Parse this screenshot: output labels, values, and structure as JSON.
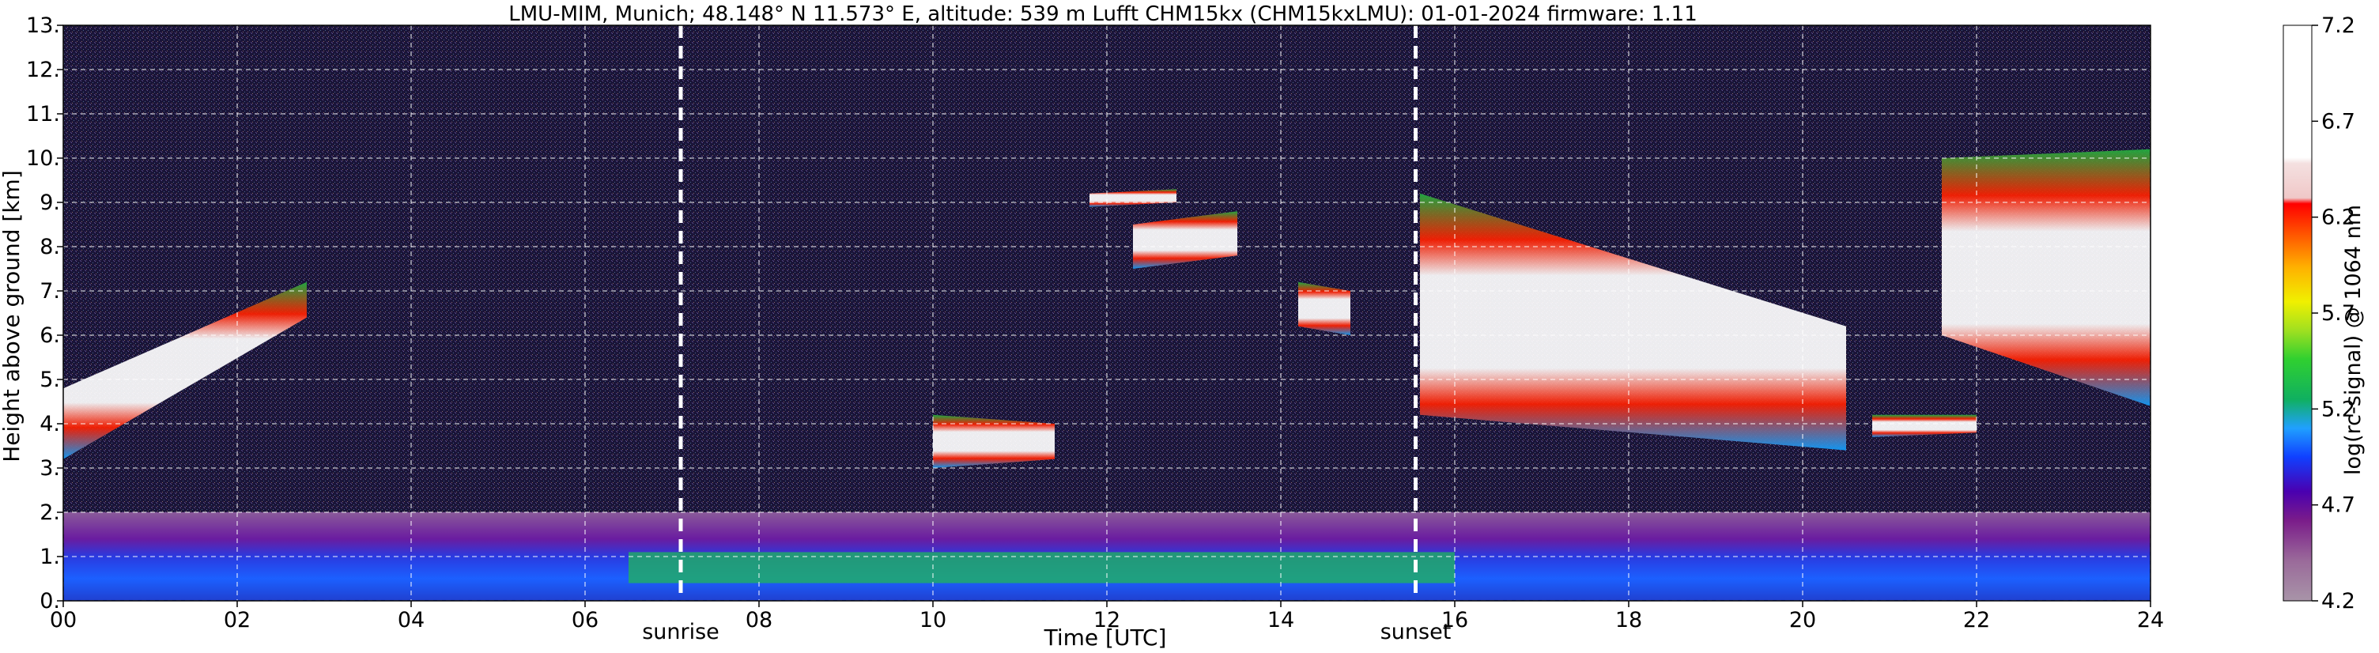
{
  "title": "LMU-MIM, Munich; 48.148° N 11.573° E, altitude: 539 m    Lufft CHM15kx (CHM15kxLMU): 01-01-2024    firmware: 1.11",
  "chart_data": {
    "type": "heatmap",
    "xlabel": "Time [UTC]",
    "ylabel": "Height above ground [km]",
    "xlim": [
      0,
      24
    ],
    "ylim": [
      0,
      13
    ],
    "x_ticks": [
      "00",
      "02",
      "04",
      "06",
      "08",
      "10",
      "12",
      "14",
      "16",
      "18",
      "20",
      "22",
      "24"
    ],
    "y_ticks": [
      "0.",
      "1.",
      "2.",
      "3.",
      "4.",
      "5.",
      "6.",
      "7.",
      "8.",
      "9.",
      "10.",
      "11.",
      "12.",
      "13."
    ],
    "grid": true,
    "colorbar": {
      "label": "log(rc-signal) @ 1064 nm",
      "range": [
        4.2,
        7.2
      ],
      "ticks": [
        "4.2",
        "4.7",
        "5.2",
        "5.7",
        "6.2",
        "6.7",
        "7.2"
      ]
    },
    "annotations": [
      {
        "label": "sunrise",
        "x": 7.1
      },
      {
        "label": "sunset",
        "x": 15.55
      }
    ],
    "cloud_layers": [
      {
        "name": "",
        "start": 0.0,
        "end": 2.8,
        "base_start": 3.2,
        "base_end": 6.4,
        "top_start": 4.8,
        "top_end": 7.2
      },
      {
        "name": "",
        "start": 10.0,
        "end": 11.4,
        "base_start": 3.0,
        "base_end": 3.2,
        "top_start": 4.2,
        "top_end": 4.0
      },
      {
        "name": "",
        "start": 11.8,
        "end": 12.8,
        "base_start": 8.9,
        "base_end": 9.0,
        "top_start": 9.2,
        "top_end": 9.3
      },
      {
        "name": "",
        "start": 12.3,
        "end": 13.5,
        "base_start": 7.5,
        "base_end": 7.8,
        "top_start": 8.5,
        "top_end": 8.8
      },
      {
        "name": "",
        "start": 14.2,
        "end": 14.8,
        "base_start": 6.2,
        "base_end": 6.0,
        "top_start": 7.2,
        "top_end": 7.0
      },
      {
        "name": "",
        "start": 15.6,
        "end": 20.5,
        "base_start": 4.2,
        "base_end": 3.4,
        "top_start": 9.2,
        "top_end": 6.2
      },
      {
        "name": "",
        "start": 20.8,
        "end": 22.0,
        "base_start": 3.7,
        "base_end": 3.8,
        "top_start": 4.2,
        "top_end": 4.2
      },
      {
        "name": "",
        "start": 21.6,
        "end": 24.0,
        "base_start": 6.0,
        "base_end": 4.4,
        "top_start": 10.0,
        "top_end": 10.2
      }
    ],
    "boundary_layer": {
      "top_km": 1.9,
      "aerosol_top_km": 2.0
    }
  }
}
